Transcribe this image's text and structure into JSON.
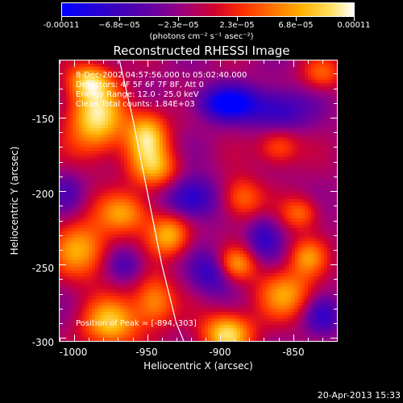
{
  "chart_data": {
    "type": "heatmap",
    "title": "Reconstructed RHESSI Image",
    "xlabel": "Heliocentric X (arcsec)",
    "ylabel": "Heliocentric Y (arcsec)",
    "xlim": [
      -1010,
      -820
    ],
    "ylim": [
      -302,
      -111
    ],
    "x_ticks": [
      -1000,
      -950,
      -900,
      -850
    ],
    "y_ticks": [
      -150,
      -200,
      -250,
      -300
    ],
    "colorbar": {
      "range": [
        -0.00011,
        0.00011
      ],
      "tick_labels": [
        "-0.00011",
        "−6.8e−05",
        "−2.3e−05",
        "2.3e−05",
        "6.8e−05",
        "0.00011"
      ],
      "unit_label": "(photons cm⁻² s⁻¹ asec⁻²)"
    },
    "annotations": {
      "time": "8-Dec-2002 04:57:56.000 to 05:02:40.000",
      "detectors": "Detectors: 4F 5F 6F 7F 8F, Att 0",
      "energy": "Energy Range: 12.0 - 25.0 keV",
      "clean": "Clean     Total counts: 1.84E+03",
      "peak": "Position of Peak = [-894,-303]"
    },
    "peak": {
      "x": -894,
      "y": -303
    },
    "limb_curve": [
      [
        -969,
        -111
      ],
      [
        -960,
        -150
      ],
      [
        -950,
        -200
      ],
      [
        -940,
        -250
      ],
      [
        -930,
        -290
      ],
      [
        -925,
        -302
      ]
    ],
    "blobs": [
      {
        "x": -985,
        "y": -150,
        "sx": 14,
        "sy": 18,
        "v": 1.0
      },
      {
        "x": -990,
        "y": -125,
        "sx": 10,
        "sy": 8,
        "v": 0.7
      },
      {
        "x": -950,
        "y": -162,
        "sx": 10,
        "sy": 12,
        "v": 0.9
      },
      {
        "x": -945,
        "y": -185,
        "sx": 12,
        "sy": 10,
        "v": 0.7
      },
      {
        "x": -965,
        "y": -215,
        "sx": 13,
        "sy": 10,
        "v": 0.7
      },
      {
        "x": -995,
        "y": -240,
        "sx": 14,
        "sy": 14,
        "v": 0.75
      },
      {
        "x": -935,
        "y": -230,
        "sx": 10,
        "sy": 10,
        "v": 0.8
      },
      {
        "x": -975,
        "y": -290,
        "sx": 14,
        "sy": 12,
        "v": 0.85
      },
      {
        "x": -945,
        "y": -275,
        "sx": 10,
        "sy": 12,
        "v": 0.7
      },
      {
        "x": -895,
        "y": -297,
        "sx": 12,
        "sy": 10,
        "v": 1.0
      },
      {
        "x": -890,
        "y": -250,
        "sx": 10,
        "sy": 8,
        "v": 0.7
      },
      {
        "x": -855,
        "y": -270,
        "sx": 14,
        "sy": 12,
        "v": 0.7
      },
      {
        "x": -840,
        "y": -245,
        "sx": 9,
        "sy": 9,
        "v": 0.6
      },
      {
        "x": -885,
        "y": -205,
        "sx": 10,
        "sy": 10,
        "v": 0.6
      },
      {
        "x": -845,
        "y": -215,
        "sx": 9,
        "sy": 8,
        "v": 0.55
      },
      {
        "x": -860,
        "y": -170,
        "sx": 10,
        "sy": 9,
        "v": 0.55
      },
      {
        "x": -830,
        "y": -120,
        "sx": 10,
        "sy": 8,
        "v": 0.5
      },
      {
        "x": -895,
        "y": -140,
        "sx": 14,
        "sy": 8,
        "v": -0.9
      },
      {
        "x": -860,
        "y": -145,
        "sx": 14,
        "sy": 10,
        "v": -0.6
      },
      {
        "x": -920,
        "y": -205,
        "sx": 12,
        "sy": 10,
        "v": -0.7
      },
      {
        "x": -905,
        "y": -255,
        "sx": 10,
        "sy": 10,
        "v": -0.6
      },
      {
        "x": -965,
        "y": -250,
        "sx": 9,
        "sy": 8,
        "v": -0.4
      },
      {
        "x": -870,
        "y": -232,
        "sx": 8,
        "sy": 10,
        "v": -0.5
      },
      {
        "x": -830,
        "y": -285,
        "sx": 9,
        "sy": 9,
        "v": -0.5
      },
      {
        "x": -1005,
        "y": -200,
        "sx": 8,
        "sy": 10,
        "v": -0.3
      }
    ],
    "grid": false
  },
  "footer": {
    "datestamp": "20-Apr-2013 15:33"
  }
}
